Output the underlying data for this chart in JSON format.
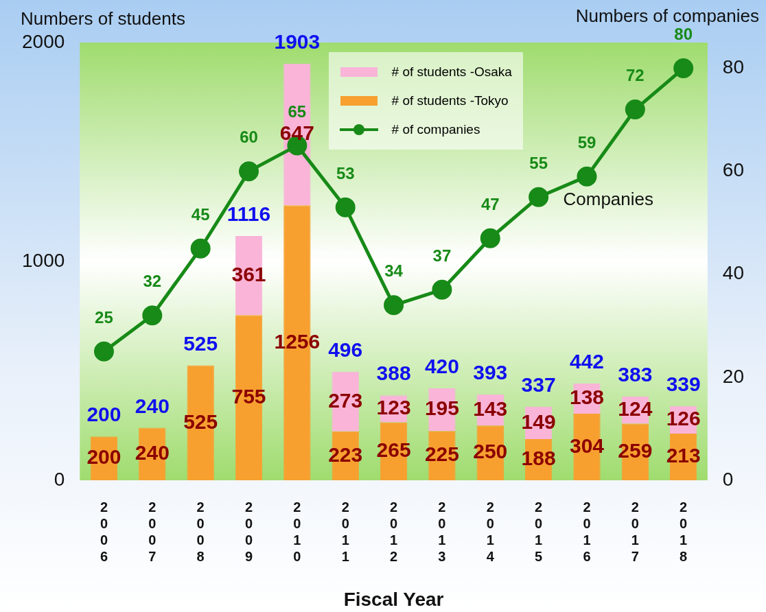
{
  "chart_data": {
    "type": "bar",
    "stacked": true,
    "xlabel": "Fiscal Year",
    "ylabel": "Numbers of students",
    "y2label": "Numbers of companies",
    "categories": [
      "2006",
      "2007",
      "2008",
      "2009",
      "2010",
      "2011",
      "2012",
      "2013",
      "2014",
      "2015",
      "2016",
      "2017",
      "2018"
    ],
    "series": [
      {
        "name": "# of students -Tokyo",
        "color": "#f7a030",
        "values": [
          200,
          240,
          525,
          755,
          1256,
          223,
          265,
          225,
          250,
          188,
          304,
          259,
          213
        ]
      },
      {
        "name": "# of students -Osaka",
        "color": "#f9b4d8",
        "values": [
          null,
          null,
          null,
          361,
          647,
          273,
          123,
          195,
          143,
          149,
          138,
          124,
          126
        ]
      },
      {
        "name": "# of companies",
        "type": "line",
        "axis": "y2",
        "color": "#178a17",
        "values": [
          25,
          32,
          45,
          60,
          65,
          53,
          34,
          37,
          47,
          55,
          59,
          72,
          80
        ]
      }
    ],
    "totals": [
      "200",
      "240",
      "525",
      "1116",
      "1903",
      "496",
      "388",
      "420",
      "393",
      "337",
      "442",
      "383",
      "339"
    ],
    "data_labels": true,
    "marker": "circle",
    "legend": "top",
    "ylim": [
      0,
      2000
    ],
    "yticks": [
      0,
      1000,
      2000
    ],
    "y2lim": [
      0,
      85
    ],
    "y2ticks": [
      0,
      20,
      40,
      60,
      80
    ],
    "annotations": [
      "Companies"
    ]
  }
}
